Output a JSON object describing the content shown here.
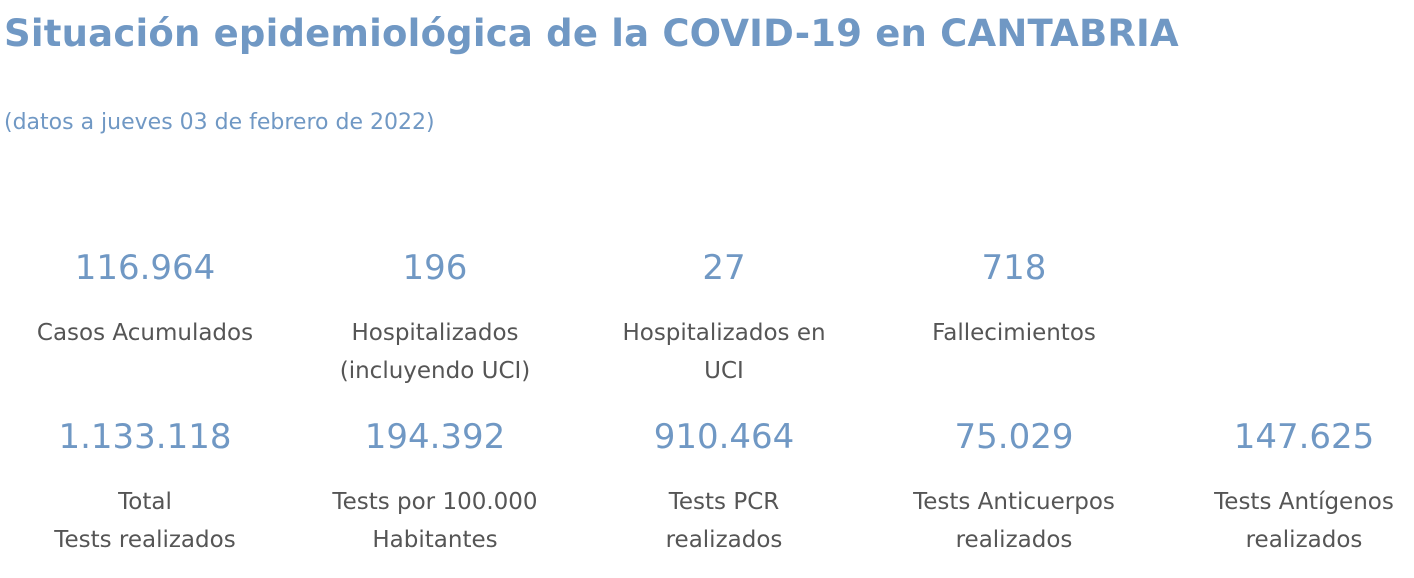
{
  "header": {
    "title": "Situación epidemiológica de la COVID-19 en CANTABRIA",
    "subtitle": "(datos a jueves 03 de febrero de 2022)"
  },
  "accent_color": "#7098c4",
  "label_color": "#555555",
  "stats_row1": [
    {
      "value": "116.964",
      "label_lines": [
        "Casos Acumulados"
      ]
    },
    {
      "value": "196",
      "label_lines": [
        "Hospitalizados",
        "(incluyendo UCI)"
      ]
    },
    {
      "value": "27",
      "label_lines": [
        "Hospitalizados en",
        "UCI"
      ]
    },
    {
      "value": "718",
      "label_lines": [
        "Fallecimientos"
      ]
    }
  ],
  "stats_row2": [
    {
      "value": "1.133.118",
      "label_lines": [
        "Total",
        "Tests realizados"
      ]
    },
    {
      "value": "194.392",
      "label_lines": [
        "Tests por 100.000",
        "Habitantes"
      ]
    },
    {
      "value": "910.464",
      "label_lines": [
        "Tests PCR",
        "realizados"
      ]
    },
    {
      "value": "75.029",
      "label_lines": [
        "Tests Anticuerpos",
        "realizados"
      ]
    },
    {
      "value": "147.625",
      "label_lines": [
        "Tests Antígenos",
        "realizados"
      ]
    }
  ]
}
